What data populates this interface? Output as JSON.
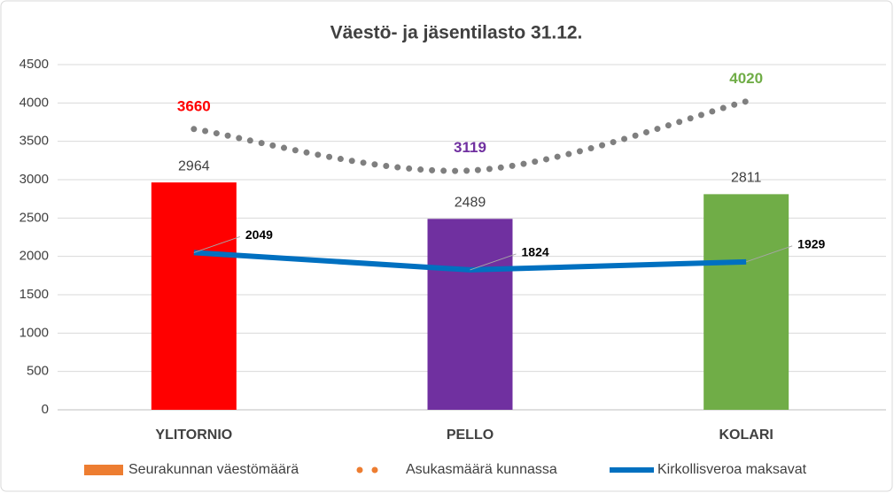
{
  "chart_data": {
    "type": "bar",
    "title": "Väestö- ja jäsentilasto  31.12.",
    "categories": [
      "YLITORNIO",
      "PELLO",
      "KOLARI"
    ],
    "ylim": [
      0,
      4500
    ],
    "yticks": [
      0,
      500,
      1000,
      1500,
      2000,
      2500,
      3000,
      3500,
      4000,
      4500
    ],
    "grid": true,
    "legend": "bottom",
    "series": [
      {
        "name": "Seurakunnan väestömäärä",
        "type": "bar",
        "color": "#ed7d31",
        "colors": [
          "#ff0000",
          "#7030a0",
          "#70ad47"
        ],
        "values": [
          2964,
          2489,
          2811
        ]
      },
      {
        "name": "Asukasmäärä kunnassa",
        "type": "dotted",
        "color": "#7f7f7f",
        "legend_color": "#ed7d31",
        "label_colors": [
          "#ff0000",
          "#7030a0",
          "#70ad47"
        ],
        "values": [
          3660,
          3119,
          4020
        ]
      },
      {
        "name": "Kirkollisveroa maksavat",
        "type": "line",
        "color": "#0070c0",
        "values": [
          2049,
          1824,
          1929
        ]
      }
    ]
  }
}
